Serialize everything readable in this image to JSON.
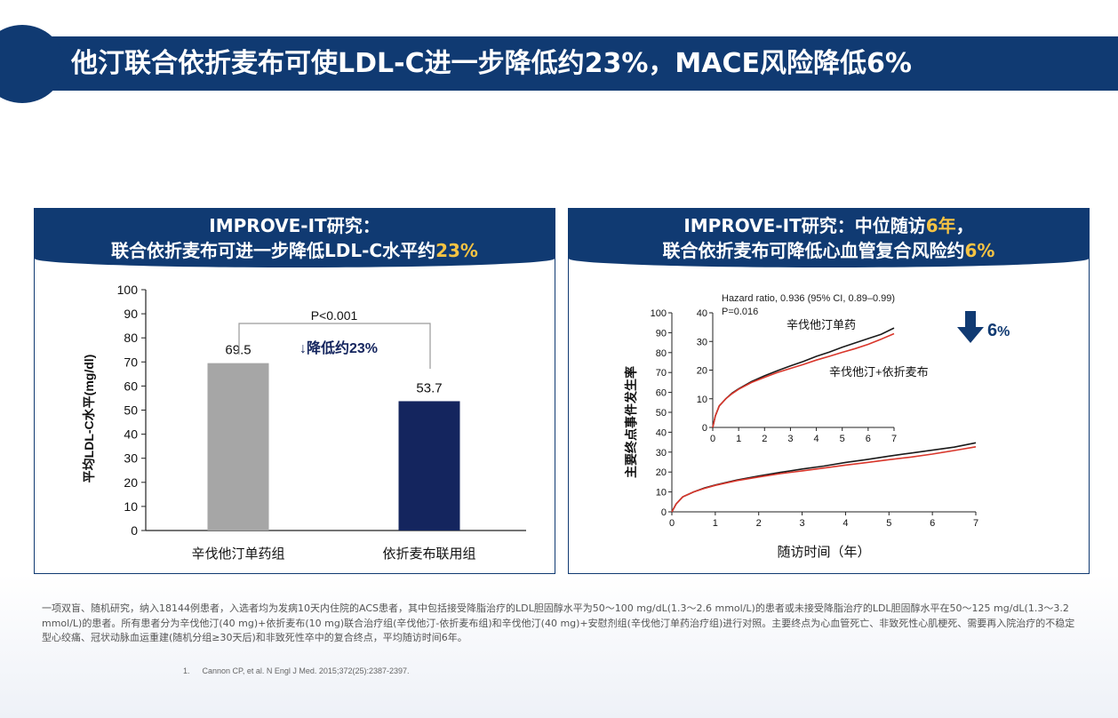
{
  "page_title": "他汀联合依折麦布可使LDL-C进一步降低约23%，MACE风险降低6%",
  "colors": {
    "navy": "#103a72",
    "highlight": "#f6c343",
    "bar_monotherapy": "#a6a6a6",
    "bar_combo": "#14255e",
    "line_combo": "#d9362b",
    "line_mono": "#1a1a1a"
  },
  "left_panel": {
    "header_line1": "IMPROVE-IT研究：",
    "header_line2_prefix": "联合依折麦布可进一步降低LDL-C水平约",
    "header_line2_highlight": "23%"
  },
  "right_panel": {
    "header_line1_prefix": "IMPROVE-IT研究：中位随访",
    "header_line1_highlight": "6年",
    "header_line1_suffix": "，",
    "header_line2_prefix": "联合依折麦布可降低心血管复合风险约",
    "header_line2_highlight": "6%"
  },
  "chart_data": [
    {
      "type": "bar",
      "categories": [
        "辛伐他汀单药组",
        "依折麦布联用组"
      ],
      "values": [
        69.5,
        53.7
      ],
      "value_labels": [
        "69.5",
        "53.7"
      ],
      "ylabel": "平均LDL-C水平(mg/dl)",
      "ylim": [
        0,
        100
      ],
      "yticks": [
        0,
        10,
        20,
        30,
        40,
        50,
        60,
        70,
        80,
        90,
        100
      ],
      "annotations": {
        "significance": "P<0.001",
        "reduction": "↓降低约23%"
      }
    },
    {
      "type": "line",
      "xlabel": "随访时间（年）",
      "ylabel": "主要终点事件发生率",
      "xlim": [
        0,
        7
      ],
      "ylim": [
        0,
        100
      ],
      "xticks": [
        0,
        1,
        2,
        3,
        4,
        5,
        6,
        7
      ],
      "yticks": [
        0,
        10,
        20,
        30,
        40,
        50,
        60,
        70,
        80,
        90,
        100
      ],
      "reduction_label": "6",
      "reduction_unit": "%",
      "series": [
        {
          "name": "辛伐他汀单药",
          "x": [
            0,
            0.1,
            0.25,
            0.5,
            0.75,
            1,
            1.5,
            2,
            2.5,
            3,
            3.5,
            4,
            4.5,
            5,
            5.5,
            6,
            6.5,
            7
          ],
          "y": [
            0,
            4,
            7.5,
            10,
            12,
            13.5,
            16,
            18,
            19.8,
            21.5,
            23,
            24.8,
            26.3,
            28,
            29.5,
            31,
            32.5,
            34.7
          ]
        },
        {
          "name": "辛伐他汀+依折麦布",
          "x": [
            0,
            0.1,
            0.25,
            0.5,
            0.75,
            1,
            1.5,
            2,
            2.5,
            3,
            3.5,
            4,
            4.5,
            5,
            5.5,
            6,
            6.5,
            7
          ],
          "y": [
            0,
            4,
            7.5,
            10,
            11.8,
            13.3,
            15.7,
            17.5,
            19.2,
            20.6,
            22,
            23.5,
            24.8,
            26.2,
            27.5,
            29,
            30.8,
            32.7
          ]
        }
      ],
      "inset": {
        "hazard_ratio_text": "Hazard ratio, 0.936 (95% CI, 0.89–0.99)",
        "p_value_text": "P=0.016",
        "xlim": [
          0,
          7
        ],
        "ylim": [
          0,
          40
        ],
        "xticks": [
          0,
          1,
          2,
          3,
          4,
          5,
          6,
          7
        ],
        "yticks": [
          0,
          10,
          20,
          30,
          40
        ]
      }
    }
  ],
  "footnote": "一项双盲、随机研究，纳入18144例患者，入选者均为发病10天内住院的ACS患者，其中包括接受降脂治疗的LDL胆固醇水平为50～100 mg/dL(1.3～2.6 mmol/L)的患者或未接受降脂治疗的LDL胆固醇水平在50～125 mg/dL(1.3～3.2 mmol/L)的患者。所有患者分为辛伐他汀(40 mg)+依折麦布(10 mg)联合治疗组(辛伐他汀-依折麦布组)和辛伐他汀(40 mg)+安慰剂组(辛伐他汀单药治疗组)进行对照。主要终点为心血管死亡、非致死性心肌梗死、需要再入院治疗的不稳定型心绞痛、冠状动脉血运重建(随机分组≥30天后)和非致死性卒中的复合终点，平均随访时间6年。",
  "reference": {
    "number": "1.",
    "text": "Cannon CP, et al. N Engl J Med. 2015;372(25):2387-2397."
  }
}
